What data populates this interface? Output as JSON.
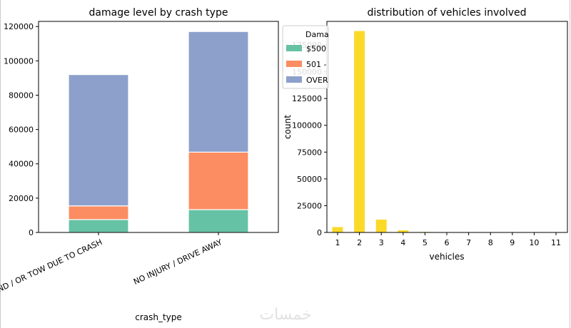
{
  "chart_data": [
    {
      "type": "bar",
      "stacked": true,
      "title": "damage level by crash type",
      "xlabel": "crash_type",
      "ylabel": "",
      "categories": [
        "INJURY AND / OR TOW DUE TO CRASH",
        "NO INJURY / DRIVE AWAY"
      ],
      "ylim": [
        0,
        123000
      ],
      "yticks": [
        0,
        20000,
        40000,
        60000,
        80000,
        100000,
        120000
      ],
      "legend": {
        "title": "Dama",
        "placement": "top-right",
        "entries": [
          "$500",
          "501 -",
          "OVER"
        ]
      },
      "series": [
        {
          "name": "$500",
          "color": "#66c2a5",
          "values": [
            7500,
            13300
          ]
        },
        {
          "name": "501 -",
          "color": "#fc8d62",
          "values": [
            8000,
            33500
          ]
        },
        {
          "name": "OVER",
          "color": "#8da0cb",
          "values": [
            76500,
            70300
          ]
        }
      ]
    },
    {
      "type": "bar",
      "title": "distribution of vehicles involved",
      "xlabel": "vehicles",
      "ylabel": "count",
      "categories": [
        "1",
        "2",
        "3",
        "4",
        "5",
        "6",
        "7",
        "8",
        "9",
        "10",
        "11"
      ],
      "values": [
        5000,
        188000,
        12000,
        2000,
        500,
        150,
        80,
        50,
        30,
        20,
        10
      ],
      "ylim": [
        0,
        197000
      ],
      "yticks": [
        0,
        25000,
        50000,
        75000,
        100000,
        125000,
        150000,
        175000
      ],
      "color": "#fbd929"
    }
  ],
  "watermark": "خمسات"
}
